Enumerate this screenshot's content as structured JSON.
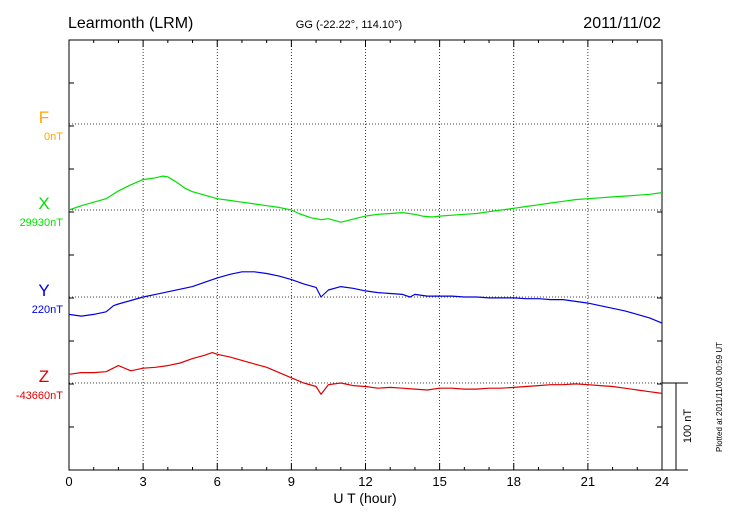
{
  "header": {
    "station": "Learmonth (LRM)",
    "coords": "GG (-22.22°, 114.10°)",
    "date": "2011/11/02"
  },
  "footer": {
    "plotted_note": "Plotted at 2011/11/03 00:59 UT"
  },
  "chart_data": {
    "type": "line",
    "xlabel": "U T (hour)",
    "xlim": [
      0,
      24
    ],
    "xticks": [
      0,
      3,
      6,
      9,
      12,
      15,
      18,
      21,
      24
    ],
    "scale_bar_label": "100 nT",
    "grid": true,
    "series": [
      {
        "name": "F",
        "baseline_label": "0nT",
        "color": "#ffa500",
        "values": []
      },
      {
        "name": "X",
        "baseline_label": "29930nT",
        "color": "#00e000",
        "x": [
          0,
          0.5,
          1,
          1.5,
          2,
          2.5,
          3,
          3.5,
          3.8,
          4,
          4.3,
          4.7,
          5,
          5.5,
          6,
          6.5,
          7,
          7.5,
          8,
          8.5,
          9,
          9.3,
          9.8,
          10.2,
          10.5,
          11,
          11.3,
          11.7,
          12,
          12.5,
          13,
          13.5,
          14,
          14.3,
          14.7,
          15,
          15.5,
          16,
          16.5,
          17,
          17.5,
          18,
          18.5,
          19,
          19.5,
          20,
          20.5,
          21,
          21.5,
          22,
          22.5,
          23,
          23.5,
          24
        ],
        "y": [
          0,
          5,
          9,
          13,
          22,
          29,
          35,
          37,
          39,
          38,
          33,
          25,
          21,
          17,
          13,
          11,
          9,
          7,
          5,
          3,
          0,
          -4,
          -9,
          -11,
          -10,
          -14,
          -12,
          -9,
          -7,
          -5,
          -4,
          -3,
          -5,
          -7,
          -8,
          -7,
          -6,
          -5,
          -4,
          -2,
          0,
          2,
          4,
          6,
          8,
          10,
          12,
          13,
          14,
          15,
          16,
          17,
          18,
          20
        ]
      },
      {
        "name": "Y",
        "baseline_label": "220nT",
        "color": "#0000e0",
        "x": [
          0,
          0.5,
          1,
          1.5,
          1.8,
          2,
          2.5,
          3,
          3.5,
          4,
          4.5,
          5,
          5.5,
          6,
          6.5,
          7,
          7.5,
          8,
          8.5,
          9,
          9.5,
          10,
          10.2,
          10.5,
          11,
          11.5,
          12,
          12.5,
          13,
          13.5,
          13.8,
          14,
          14.5,
          15,
          15.5,
          16,
          16.5,
          17,
          17.5,
          18,
          18.5,
          19,
          19.5,
          20,
          20.5,
          21,
          21.5,
          22,
          22.5,
          23,
          23.5,
          24
        ],
        "y": [
          -20,
          -22,
          -20,
          -17,
          -10,
          -8,
          -4,
          0,
          3,
          6,
          9,
          12,
          17,
          22,
          26,
          29,
          29,
          27,
          24,
          20,
          15,
          11,
          0,
          8,
          12,
          10,
          7,
          5,
          4,
          3,
          0,
          3,
          1,
          1,
          1,
          0,
          0,
          -1,
          -1,
          -1,
          -2,
          -2,
          -3,
          -3,
          -5,
          -7,
          -10,
          -13,
          -16,
          -20,
          -24,
          -30
        ]
      },
      {
        "name": "Z",
        "baseline_label": "-43660nT",
        "color": "#e00000",
        "x": [
          0,
          0.5,
          1,
          1.5,
          2,
          2.5,
          3,
          3.5,
          4,
          4.5,
          5,
          5.5,
          5.8,
          6,
          6.5,
          7,
          7.5,
          8,
          8.5,
          9,
          9.5,
          10,
          10.2,
          10.5,
          11,
          11.5,
          12,
          12.5,
          13,
          13.5,
          14,
          14.5,
          15,
          15.5,
          16,
          16.5,
          17,
          17.5,
          18,
          18.5,
          19,
          19.5,
          20,
          20.5,
          21,
          21.5,
          22,
          22.5,
          23,
          23.5,
          24
        ],
        "y": [
          10,
          12,
          12,
          13,
          20,
          14,
          17,
          18,
          20,
          23,
          28,
          32,
          35,
          33,
          30,
          26,
          22,
          18,
          12,
          6,
          0,
          -4,
          -13,
          -2,
          0,
          -3,
          -4,
          -6,
          -5,
          -6,
          -7,
          -8,
          -6,
          -6,
          -7,
          -7,
          -6,
          -6,
          -5,
          -4,
          -3,
          -2,
          -2,
          -1,
          -2,
          -3,
          -4,
          -6,
          -8,
          -10,
          -12
        ]
      }
    ]
  }
}
